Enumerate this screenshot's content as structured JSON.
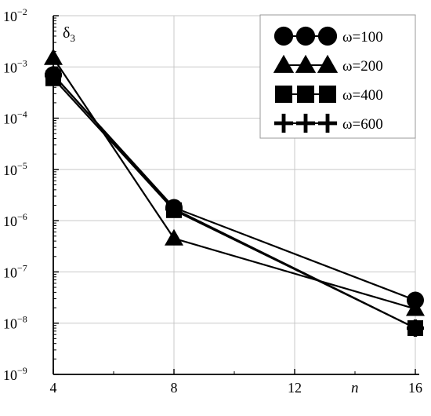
{
  "chart_data": {
    "type": "line",
    "ylabel_base": "δ",
    "ylabel_sub": "3",
    "xlabel": "n",
    "x": [
      4,
      8,
      16
    ],
    "xlim": [
      4,
      16
    ],
    "xticks": [
      "4",
      "8",
      "12",
      "16"
    ],
    "xtick_values": [
      4,
      8,
      12,
      16
    ],
    "yscale": "log",
    "ylim": [
      1e-09,
      0.01
    ],
    "yticks": [
      {
        "value": 0.01,
        "base": "10",
        "exp": "−2"
      },
      {
        "value": 0.001,
        "base": "10",
        "exp": "−3"
      },
      {
        "value": 0.0001,
        "base": "10",
        "exp": "−4"
      },
      {
        "value": 1e-05,
        "base": "10",
        "exp": "−5"
      },
      {
        "value": 1e-06,
        "base": "10",
        "exp": "−6"
      },
      {
        "value": 1e-07,
        "base": "10",
        "exp": "−7"
      },
      {
        "value": 1e-08,
        "base": "10",
        "exp": "−8"
      },
      {
        "value": 1e-09,
        "base": "10",
        "exp": "−9"
      }
    ],
    "grid": true,
    "legend_position": "top-right",
    "series": [
      {
        "name": "ω=100",
        "marker": "circle",
        "values": [
          0.0007,
          1.8e-06,
          2.8e-08
        ]
      },
      {
        "name": "ω=200",
        "marker": "triangle",
        "values": [
          0.0015,
          4.5e-07,
          1.9e-08
        ]
      },
      {
        "name": "ω=400",
        "marker": "square",
        "values": [
          0.0006,
          1.6e-06,
          8e-09
        ]
      },
      {
        "name": "ω=600",
        "marker": "plus",
        "values": [
          0.0007,
          1.7e-06,
          8e-09
        ]
      }
    ]
  }
}
